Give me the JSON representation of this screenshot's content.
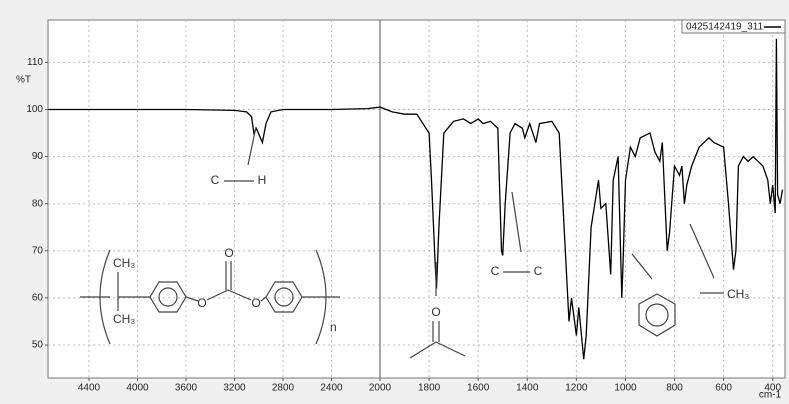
{
  "chart_data": {
    "type": "line",
    "x": [
      4738,
      4400,
      4000,
      3600,
      3200,
      3100,
      3060,
      3040,
      3020,
      2970,
      2940,
      2900,
      2800,
      2400,
      2100,
      2000,
      1950,
      1900,
      1850,
      1800,
      1790,
      1775,
      1770,
      1760,
      1740,
      1700,
      1660,
      1630,
      1600,
      1580,
      1550,
      1520,
      1505,
      1500,
      1490,
      1470,
      1450,
      1420,
      1410,
      1390,
      1365,
      1350,
      1300,
      1270,
      1250,
      1230,
      1220,
      1200,
      1190,
      1170,
      1160,
      1140,
      1110,
      1100,
      1080,
      1060,
      1050,
      1030,
      1015,
      1010,
      1000,
      980,
      960,
      940,
      900,
      880,
      860,
      850,
      830,
      820,
      800,
      780,
      770,
      760,
      750,
      730,
      700,
      660,
      640,
      600,
      580,
      560,
      550,
      540,
      520,
      500,
      480,
      460,
      440,
      420,
      410,
      400,
      390,
      385,
      380,
      370,
      360
    ],
    "series": [
      {
        "name": "0425142419_311",
        "color": "#000000",
        "values": [
          100,
          100,
          100,
          100,
          99.8,
          99.5,
          98.5,
          95,
          96,
          93,
          97,
          99.5,
          100,
          100,
          100.2,
          100.5,
          99.5,
          99,
          99,
          95,
          85,
          67,
          62,
          75,
          95,
          97.5,
          98,
          97,
          98,
          97,
          97.5,
          96,
          70,
          69,
          80,
          95,
          97,
          96,
          94,
          97,
          93,
          97,
          97.5,
          95,
          75,
          55,
          60,
          52,
          58,
          47,
          52,
          75,
          85,
          79,
          80,
          65,
          85,
          90,
          60,
          67,
          85,
          92,
          90,
          94,
          95,
          91,
          89,
          93,
          70,
          74,
          88,
          86,
          88,
          80,
          84,
          88,
          92,
          94,
          93,
          92,
          80,
          66,
          70,
          88,
          90,
          89,
          90,
          89,
          88,
          85,
          80,
          84,
          78,
          115,
          82,
          80,
          83
        ]
      }
    ],
    "xlim": [
      4738,
      350
    ],
    "x_break": 2000,
    "xticks": [
      4400,
      4000,
      3600,
      3200,
      2800,
      2400,
      2000,
      1800,
      1600,
      1400,
      1200,
      1000,
      800,
      600,
      400
    ],
    "ylim": [
      43,
      119
    ],
    "yticks": [
      50,
      60,
      70,
      80,
      90,
      100,
      110
    ],
    "y_label": "%T",
    "x_label": "cm-1",
    "grid": true,
    "annotations": [
      "C",
      "H",
      "C",
      "C",
      "O",
      "CH₃",
      "CH₃",
      "CH₃",
      "O",
      "O",
      "O",
      "n"
    ]
  }
}
